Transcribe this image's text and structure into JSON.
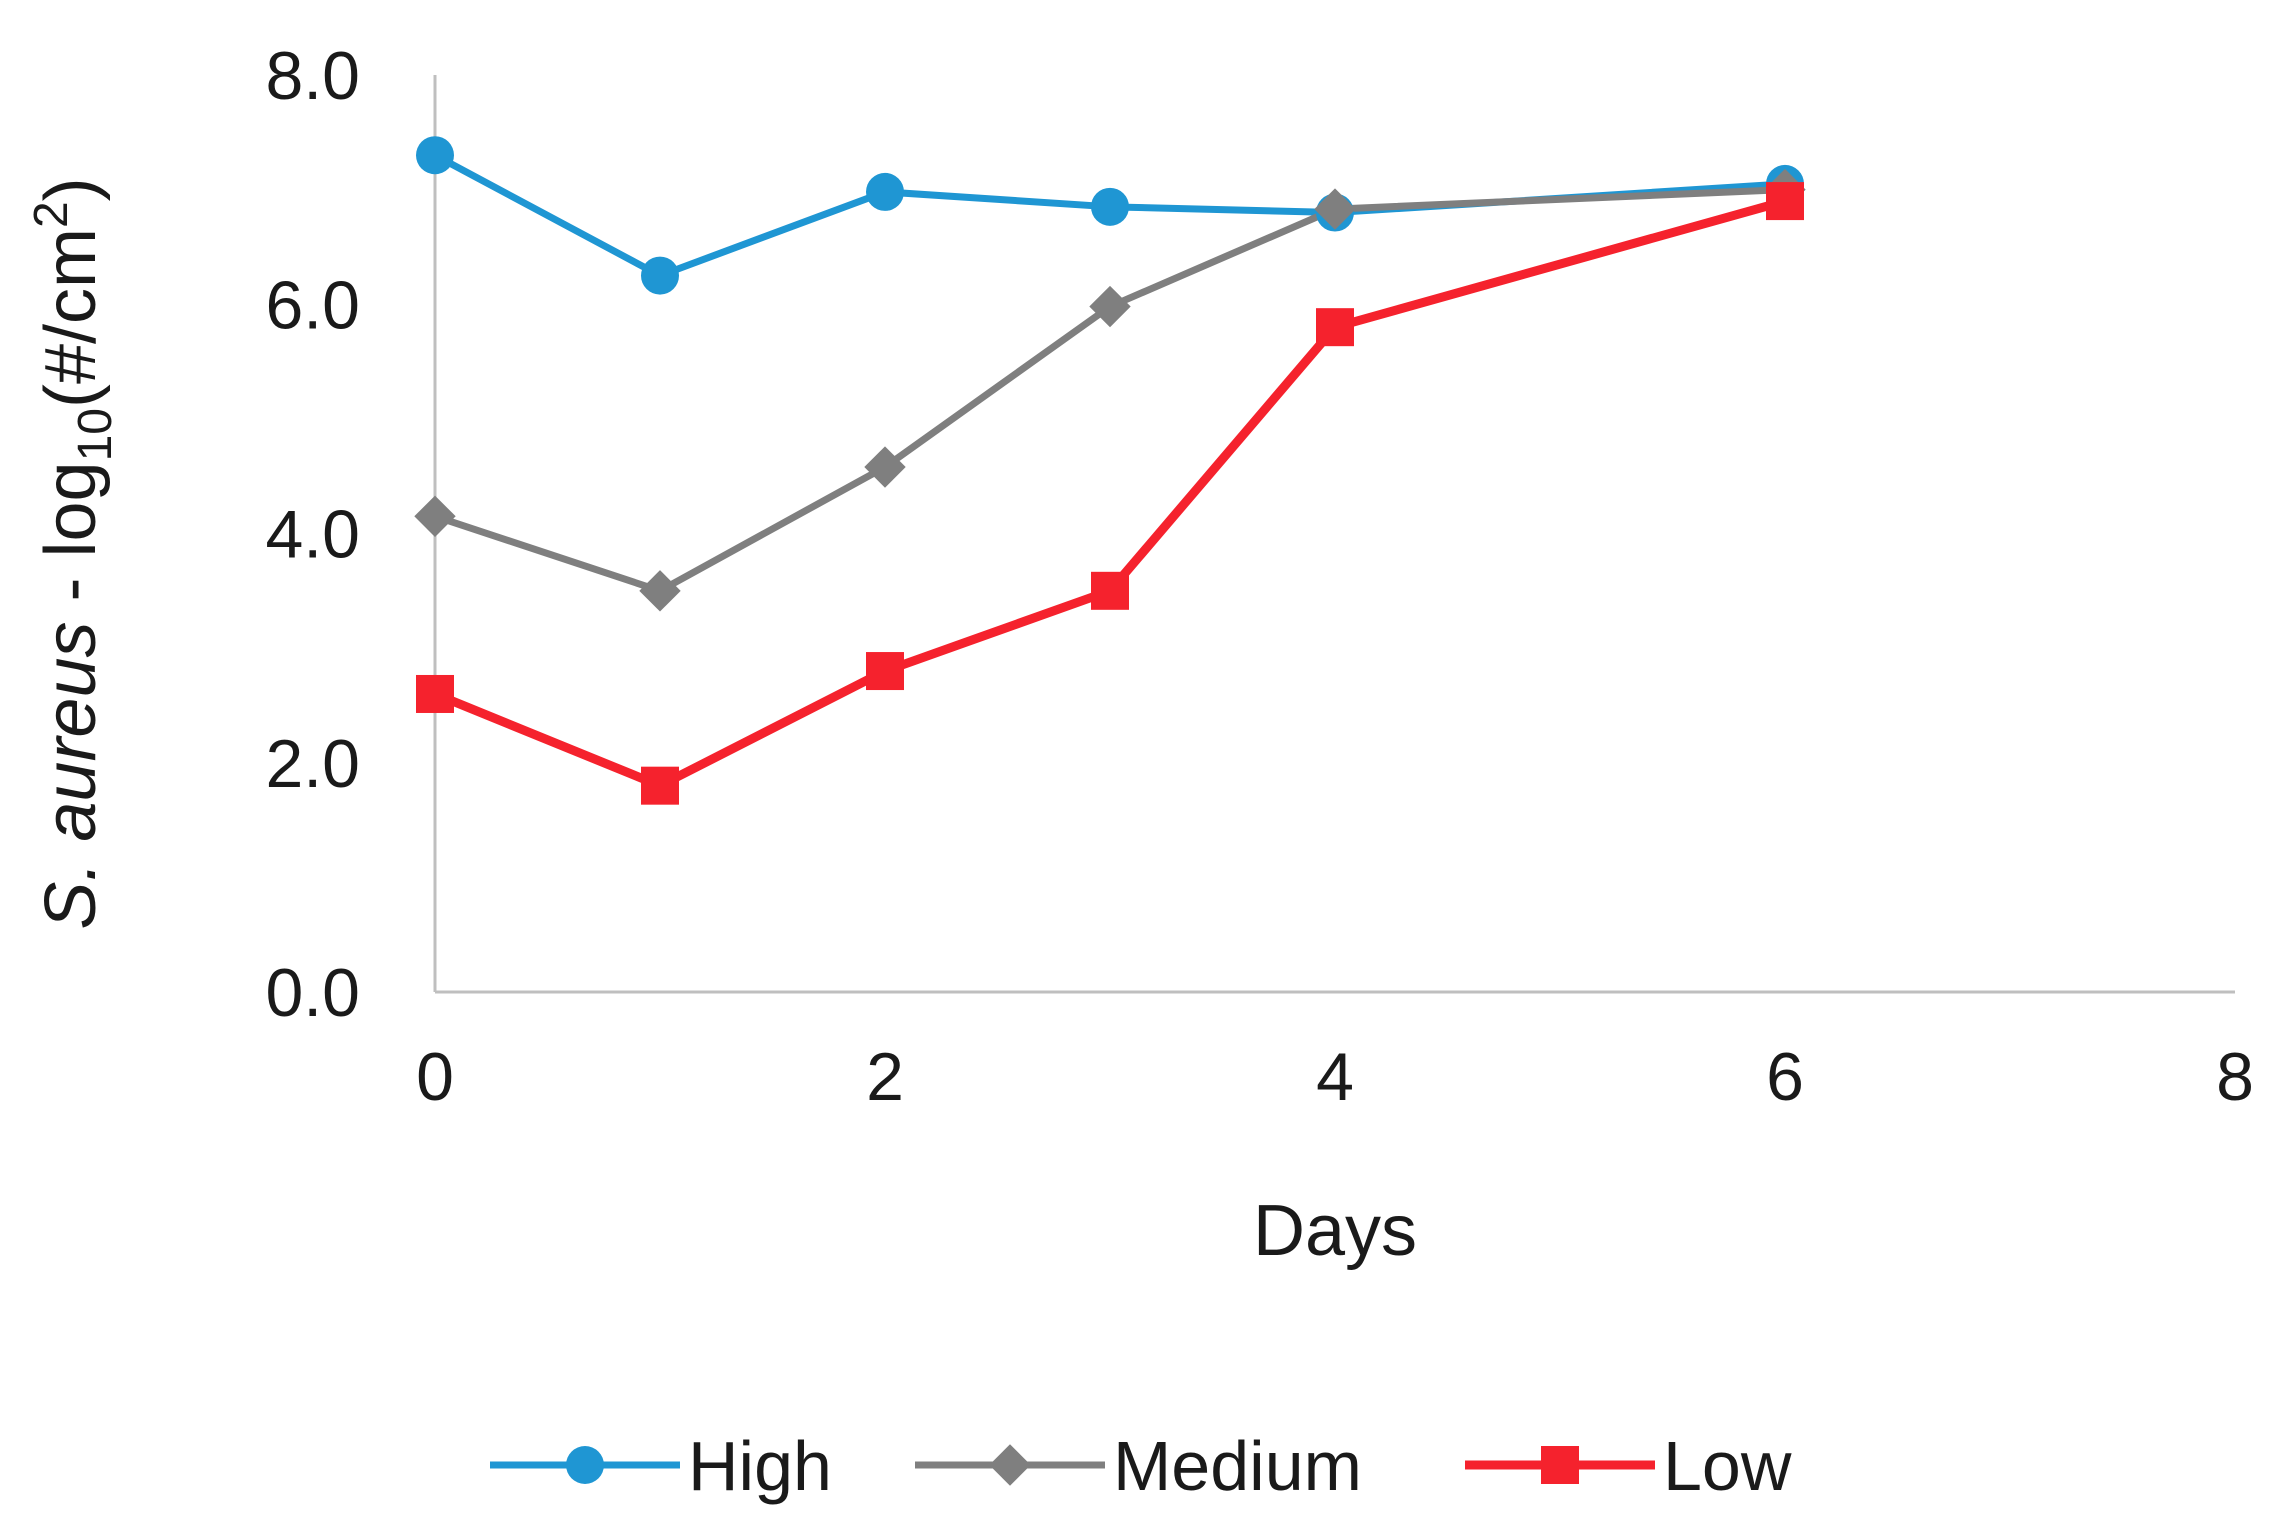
{
  "chart_data": {
    "type": "line",
    "title": "",
    "xlabel": "Days",
    "ylabel": {
      "italic_part": "S. aureus",
      "plain_part": " - log",
      "subscript": "10",
      "unit_prefix": "(#/cm",
      "superscript": "2",
      "unit_suffix": ")"
    },
    "xlim": [
      0,
      8
    ],
    "ylim": [
      0,
      8
    ],
    "x_ticks": [
      0,
      2,
      4,
      6,
      8
    ],
    "x_tick_labels": [
      "0",
      "2",
      "4",
      "6",
      "8"
    ],
    "y_ticks": [
      0,
      2,
      4,
      6,
      8
    ],
    "y_tick_labels": [
      "0.0",
      "2.0",
      "4.0",
      "6.0",
      "8.0"
    ],
    "grid": false,
    "legend_position": "bottom",
    "series": [
      {
        "name": "High",
        "color": "#1f96d3",
        "marker": "circle",
        "x": [
          0,
          1,
          2,
          3,
          4,
          6
        ],
        "y": [
          7.3,
          6.25,
          6.98,
          6.85,
          6.8,
          7.05
        ]
      },
      {
        "name": "Medium",
        "color": "#7f7f7f",
        "marker": "diamond",
        "x": [
          0,
          1,
          2,
          3,
          4,
          6
        ],
        "y": [
          4.15,
          3.5,
          4.58,
          5.98,
          6.83,
          7.0
        ]
      },
      {
        "name": "Low",
        "color": "#f5222d",
        "marker": "square",
        "x": [
          0,
          1,
          2,
          3,
          4,
          6
        ],
        "y": [
          2.6,
          1.8,
          2.8,
          3.5,
          5.8,
          6.9
        ]
      }
    ]
  }
}
